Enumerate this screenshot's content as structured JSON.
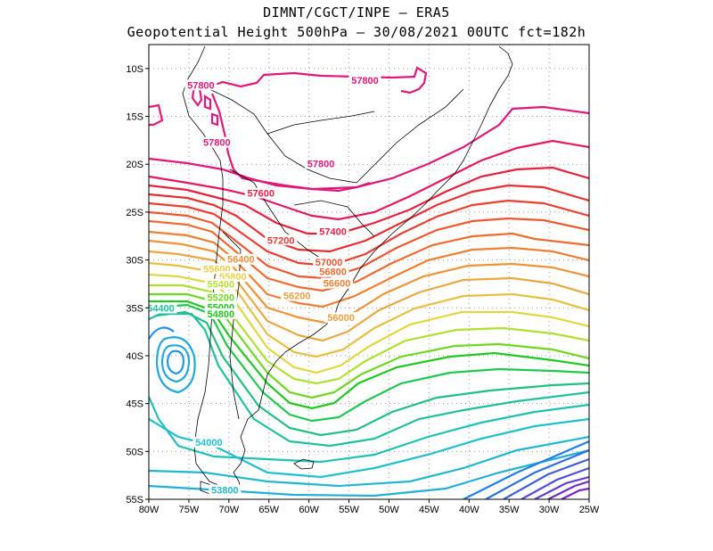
{
  "title": {
    "line1": "DIMNT/CGCT/INPE –  ERA5",
    "line2": "Geopotential Height 500hPa –  30/08/2021 00UTC fct=182h"
  },
  "axes": {
    "lat_labels": [
      "10S",
      "15S",
      "20S",
      "25S",
      "30S",
      "35S",
      "40S",
      "45S",
      "50S",
      "55S"
    ],
    "lon_labels": [
      "80W",
      "75W",
      "70W",
      "65W",
      "60W",
      "55W",
      "50W",
      "45W",
      "40W",
      "35W",
      "30W",
      "25W"
    ],
    "lat_range": [
      -55,
      -7.5
    ],
    "lon_range": [
      -80,
      -25
    ],
    "grid": "dotted"
  },
  "contour_labels": [
    {
      "text": "57800",
      "color": "#e0187a",
      "lon": -73.5,
      "lat": -12
    },
    {
      "text": "57800",
      "color": "#e0187a",
      "lon": -53,
      "lat": -11.5
    },
    {
      "text": "57800",
      "color": "#e0187a",
      "lon": -71.5,
      "lat": -18
    },
    {
      "text": "57800",
      "color": "#e0187a",
      "lon": -58.5,
      "lat": -20.2
    },
    {
      "text": "57600",
      "color": "#e8204a",
      "lon": -66,
      "lat": -23.3
    },
    {
      "text": "57400",
      "color": "#e8204a",
      "lon": -57,
      "lat": -27.3
    },
    {
      "text": "57200",
      "color": "#e83838",
      "lon": -63.5,
      "lat": -28.2
    },
    {
      "text": "57000",
      "color": "#ec5430",
      "lon": -57.5,
      "lat": -30.5
    },
    {
      "text": "56800",
      "color": "#ec6c30",
      "lon": -57,
      "lat": -31.5
    },
    {
      "text": "56600",
      "color": "#f08030",
      "lon": -56.5,
      "lat": -32.7
    },
    {
      "text": "56400",
      "color": "#f49038",
      "lon": -68.5,
      "lat": -30.2
    },
    {
      "text": "56200",
      "color": "#e8a040",
      "lon": -61.5,
      "lat": -34
    },
    {
      "text": "56000",
      "color": "#e8a040",
      "lon": -56,
      "lat": -36.3
    },
    {
      "text": "55600",
      "color": "#e8d040",
      "lon": -71.5,
      "lat": -31.2
    },
    {
      "text": "55800",
      "color": "#e8d040",
      "lon": -69.5,
      "lat": -32
    },
    {
      "text": "55400",
      "color": "#b8e030",
      "lon": -71,
      "lat": -32.8
    },
    {
      "text": "55200",
      "color": "#70d820",
      "lon": -71,
      "lat": -34.2
    },
    {
      "text": "55000",
      "color": "#20c820",
      "lon": -71,
      "lat": -35.2
    },
    {
      "text": "54800",
      "color": "#20c820",
      "lon": -71,
      "lat": -35.9
    },
    {
      "text": "54400",
      "color": "#20c0a0",
      "lon": -78.5,
      "lat": -35.3
    },
    {
      "text": "54000",
      "color": "#20c0d0",
      "lon": -72.5,
      "lat": -49.3
    },
    {
      "text": "53800",
      "color": "#20b8d0",
      "lon": -70.5,
      "lat": -54.3
    }
  ],
  "colors": {
    "ridge": "#e0187a",
    "warm": "#f08030",
    "mid": "#20c820",
    "cold": "#20c0d0",
    "trough": "#8020c0",
    "coast": "#000000"
  }
}
